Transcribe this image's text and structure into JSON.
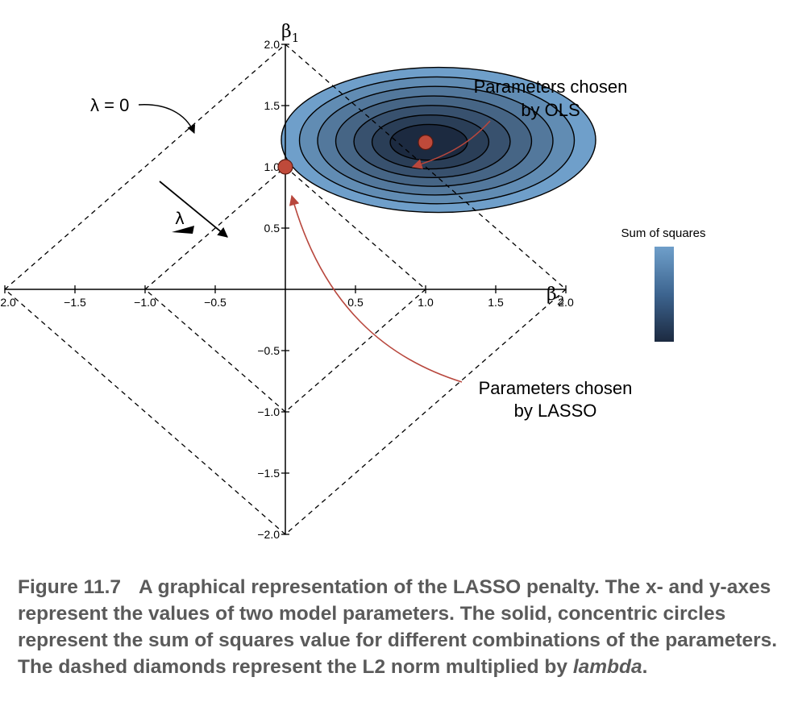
{
  "figure": {
    "y_axis_symbol": "β",
    "y_axis_subscript": "1",
    "x_axis_symbol": "β",
    "x_axis_subscript": "2",
    "x_ticks": [
      {
        "value": -2.0,
        "label": "−2.0"
      },
      {
        "value": -1.5,
        "label": "−1.5"
      },
      {
        "value": -1.0,
        "label": "−1.0"
      },
      {
        "value": -0.5,
        "label": "−0.5"
      },
      {
        "value": 0.5,
        "label": "0.5"
      },
      {
        "value": 1.0,
        "label": "1.0"
      },
      {
        "value": 1.5,
        "label": "1.5"
      },
      {
        "value": 2.0,
        "label": "2.0"
      }
    ],
    "y_ticks": [
      {
        "value": 2.0,
        "label": "2.0"
      },
      {
        "value": 1.5,
        "label": "1.5"
      },
      {
        "value": 1.0,
        "label": "1.0"
      },
      {
        "value": 0.5,
        "label": "0.5"
      },
      {
        "value": -0.5,
        "label": "−0.5"
      },
      {
        "value": -1.0,
        "label": "−1.0"
      },
      {
        "value": -1.5,
        "label": "−1.5"
      },
      {
        "value": -2.0,
        "label": "−2.0"
      }
    ],
    "xlim": [
      -2.0,
      2.0
    ],
    "ylim": [
      -2.0,
      2.0
    ],
    "diamonds": [
      2.0,
      1.0
    ],
    "ols_point": {
      "x": 1.0,
      "y": 1.2
    },
    "lasso_point": {
      "x": 0.0,
      "y": 1.0
    },
    "contour_levels": 7,
    "lambda_zero_label": "λ = 0",
    "lambda_label": "λ",
    "ols_annotation": [
      "Parameters chosen",
      "by OLS"
    ],
    "lasso_annotation": [
      "Parameters chosen",
      "by LASSO"
    ],
    "colorbar_title": "Sum of squares",
    "colors": {
      "contour_light": "#6f9fca",
      "contour_dark": "#1c2a40",
      "point_fill": "#bf4a3a",
      "annotation_arrow": "#b8473d"
    }
  },
  "caption": {
    "figure_number": "Figure 11.7",
    "text_before_em": "A graphical representation of the LASSO penalty. The x- and y-axes represent the values of two model parameters. The solid, concentric circles represent the sum of squares value for different combinations of the parameters. The dashed diamonds represent the L2 norm multiplied by ",
    "emphasis": "lambda",
    "text_after_em": "."
  }
}
